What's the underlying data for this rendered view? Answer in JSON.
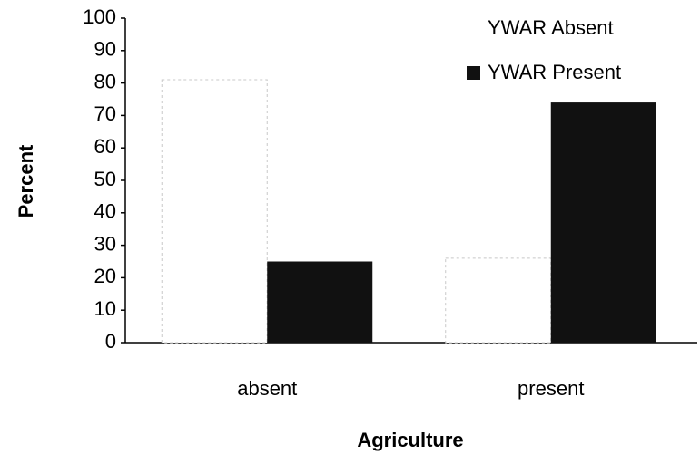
{
  "chart_data": {
    "type": "bar",
    "x_label": "Agriculture",
    "y_label": "Percent",
    "categories": [
      "absent",
      "present"
    ],
    "series": [
      {
        "name": "YWAR Absent",
        "color": "#ffffff",
        "values": [
          81,
          26
        ]
      },
      {
        "name": "YWAR Present",
        "color": "#111111",
        "values": [
          25,
          74
        ]
      }
    ],
    "ylim": [
      0,
      100
    ],
    "yticks": [
      0,
      10,
      20,
      30,
      40,
      50,
      60,
      70,
      80,
      90,
      100
    ],
    "legend": "upper right",
    "grid": false
  }
}
